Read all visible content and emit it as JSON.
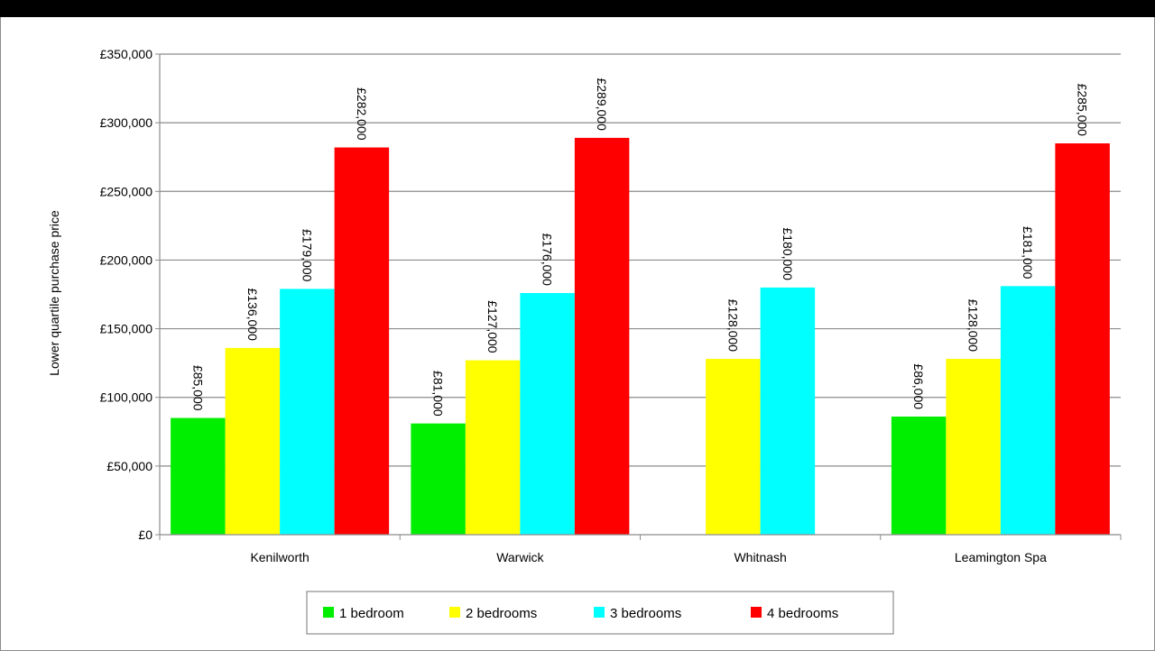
{
  "chart_data": {
    "type": "bar",
    "title": "",
    "xlabel": "",
    "ylabel": "Lower quartile purchase price",
    "categories": [
      "Kenilworth",
      "Warwick",
      "Whitnash",
      "Leamington Spa"
    ],
    "ylim": [
      0,
      350000
    ],
    "yticks": [
      0,
      50000,
      100000,
      150000,
      200000,
      250000,
      300000,
      350000
    ],
    "ytick_labels": [
      "£0",
      "£50,000",
      "£100,000",
      "£150,000",
      "£200,000",
      "£250,000",
      "£300,000",
      "£350,000"
    ],
    "grid": true,
    "legend_position": "bottom",
    "series": [
      {
        "name": "1 bedroom",
        "color": "#00ee00",
        "values": [
          85000,
          81000,
          null,
          86000
        ],
        "labels": [
          "£85,000",
          "£81,000",
          "",
          "£86,000"
        ]
      },
      {
        "name": "2 bedrooms",
        "color": "#ffff00",
        "values": [
          136000,
          127000,
          128000,
          128000
        ],
        "labels": [
          "£136,000",
          "£127,000",
          "£128,000",
          "£128,000"
        ]
      },
      {
        "name": "3 bedrooms",
        "color": "#00ffff",
        "values": [
          179000,
          176000,
          180000,
          181000
        ],
        "labels": [
          "£179,000",
          "£176,000",
          "£180,000",
          "£181,000"
        ]
      },
      {
        "name": "4 bedrooms",
        "color": "#ff0000",
        "values": [
          282000,
          289000,
          null,
          285000
        ],
        "labels": [
          "£282,000",
          "£289,000",
          "",
          "£285,000"
        ]
      }
    ]
  }
}
